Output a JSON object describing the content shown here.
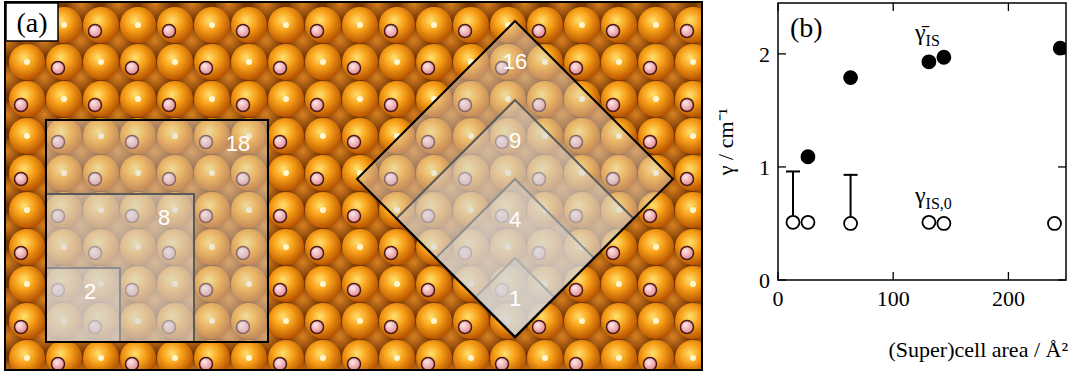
{
  "panel_a": {
    "label": "(a)",
    "square_cells": [
      2,
      8,
      18
    ],
    "diamond_cells": [
      1,
      4,
      9,
      16
    ]
  },
  "chart_data": {
    "type": "scatter",
    "panel_label": "(b)",
    "xlabel": "(Super)cell area / Å²",
    "ylabel": "γ / cm⁻¹",
    "xlim": [
      0,
      250
    ],
    "ylim": [
      0,
      2.45
    ],
    "xticks": [
      0,
      100,
      200
    ],
    "yticks": [
      0,
      1,
      2
    ],
    "series": [
      {
        "name": "γ̄IS",
        "marker": "filled",
        "color": "#000000",
        "x": [
          26,
          63,
          131,
          144,
          245
        ],
        "values": [
          1.09,
          1.79,
          1.93,
          1.97,
          2.05
        ]
      },
      {
        "name": "γIS,0",
        "marker": "open",
        "color": "#000000",
        "x": [
          13,
          26,
          63,
          131,
          144,
          240
        ],
        "values": [
          0.51,
          0.51,
          0.5,
          0.51,
          0.5,
          0.5
        ],
        "errors": [
          0.45,
          null,
          0.43,
          null,
          null,
          null
        ]
      }
    ]
  }
}
